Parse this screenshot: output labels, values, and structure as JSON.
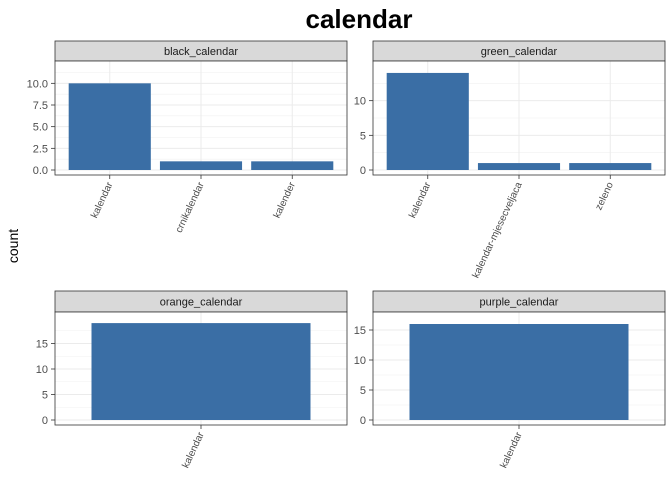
{
  "chart_data": {
    "type": "bar",
    "title": "calendar",
    "ylabel": "count",
    "xlabel": "",
    "bar_color": "#3a6ea5",
    "strip_color": "#d9d9d9",
    "grid": true,
    "facets": [
      {
        "name": "black_calendar",
        "categories": [
          "kalendar",
          "crnikalendar",
          "kalender"
        ],
        "values": [
          10,
          1,
          1
        ],
        "ylim": [
          0,
          12
        ],
        "yticks": [
          0,
          2.5,
          5,
          7.5,
          10
        ],
        "ytick_labels": [
          "0.0",
          "2.5",
          "5.0",
          "7.5",
          "10.0"
        ]
      },
      {
        "name": "green_calendar",
        "categories": [
          "kalendar",
          "kalendar-mjesecveljaca",
          "zeleno"
        ],
        "values": [
          14,
          1,
          1
        ],
        "ylim": [
          0,
          15
        ],
        "yticks": [
          0,
          5,
          10
        ],
        "ytick_labels": [
          "0",
          "5",
          "10"
        ]
      },
      {
        "name": "orange_calendar",
        "categories": [
          "kalendar"
        ],
        "values": [
          19
        ],
        "ylim": [
          0,
          20
        ],
        "yticks": [
          0,
          5,
          10,
          15
        ],
        "ytick_labels": [
          "0",
          "5",
          "10",
          "15"
        ]
      },
      {
        "name": "purple_calendar",
        "categories": [
          "kalendar"
        ],
        "values": [
          16
        ],
        "ylim": [
          0,
          17
        ],
        "yticks": [
          0,
          5,
          10,
          15
        ],
        "ytick_labels": [
          "0",
          "5",
          "10",
          "15"
        ]
      }
    ]
  }
}
